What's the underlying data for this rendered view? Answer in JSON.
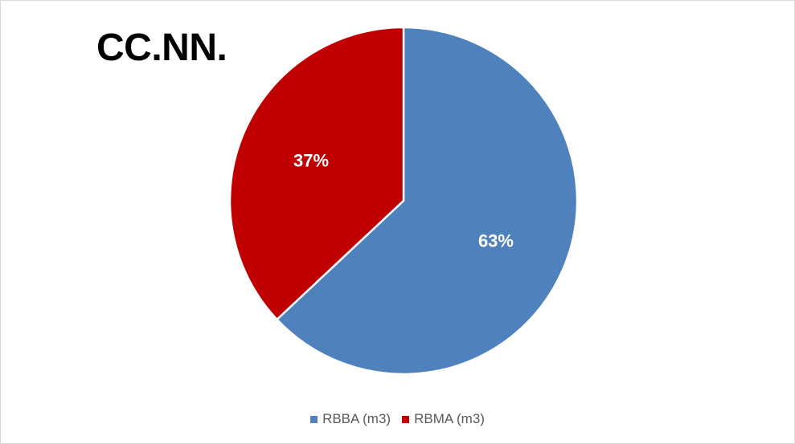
{
  "chart_data": {
    "type": "pie",
    "title": "CC.NN.",
    "series": [
      {
        "name": "",
        "values": [
          63,
          37
        ]
      }
    ],
    "categories": [
      "RBBA (m3)",
      "RBMA (m3)"
    ],
    "data_labels": [
      "63%",
      "37%"
    ],
    "colors": [
      "#4F81BD",
      "#C00000"
    ],
    "start_angle_deg": 0,
    "direction": "clockwise",
    "legend_position": "bottom",
    "grid": false
  }
}
